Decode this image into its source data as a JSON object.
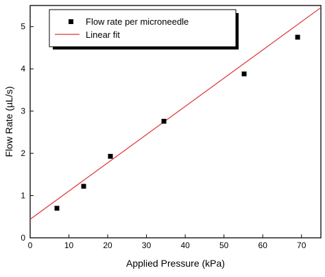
{
  "chart_data": {
    "type": "scatter",
    "xlabel": "Applied Pressure (kPa)",
    "ylabel": "Flow Rate (µL/s)",
    "xlim": [
      0,
      75
    ],
    "ylim": [
      0,
      5.5
    ],
    "x_ticks": [
      0,
      10,
      20,
      30,
      40,
      50,
      60,
      70
    ],
    "y_ticks": [
      0,
      1,
      2,
      3,
      4,
      5
    ],
    "grid": false,
    "legend_position": "top-left",
    "series": [
      {
        "name": "Flow rate per microneedle",
        "kind": "scatter",
        "marker": "square",
        "color": "#000000",
        "x": [
          6.9,
          13.8,
          20.7,
          34.5,
          55.2,
          69.0
        ],
        "y": [
          0.7,
          1.22,
          1.93,
          2.76,
          3.88,
          4.75
        ]
      },
      {
        "name": "Linear fit",
        "kind": "line",
        "color": "#e03030",
        "x": [
          0,
          75
        ],
        "y": [
          0.44,
          5.45
        ]
      }
    ]
  }
}
